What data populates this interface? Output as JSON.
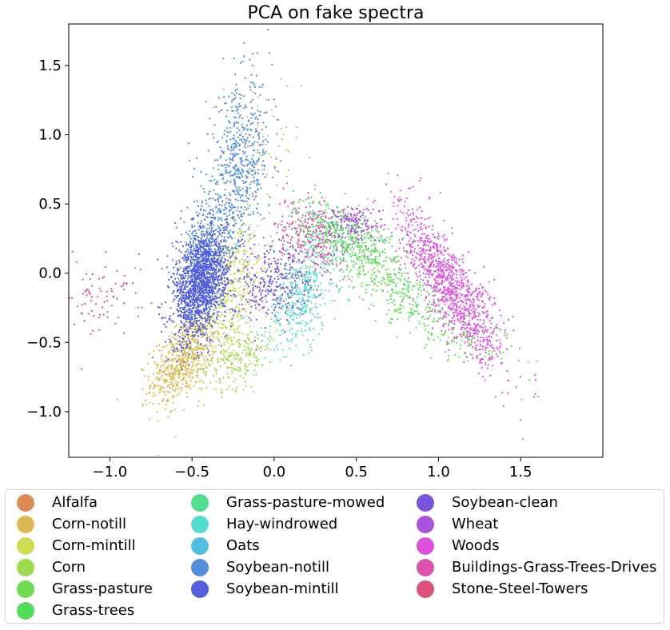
{
  "chart_data": {
    "type": "scatter",
    "title": "PCA on fake spectra",
    "xlabel": "",
    "ylabel": "",
    "xlim": [
      -1.25,
      2.0
    ],
    "ylim": [
      -1.33,
      1.8
    ],
    "xticks": [
      -1.0,
      -0.5,
      0.0,
      0.5,
      1.0,
      1.5
    ],
    "xtick_labels": [
      "−1.0",
      "−0.5",
      "0.0",
      "0.5",
      "1.0",
      "1.5"
    ],
    "yticks": [
      -1.0,
      -0.5,
      0.0,
      0.5,
      1.0,
      1.5
    ],
    "ytick_labels": [
      "−1.0",
      "−0.5",
      "0.0",
      "0.5",
      "1.0",
      "1.5"
    ],
    "grid": false,
    "legend_placement": "below-plot",
    "series": [
      {
        "name": "Alfalfa",
        "color": "#db8b53",
        "clusters": []
      },
      {
        "name": "Corn-notill",
        "color": "#dbbb53",
        "clusters": [
          {
            "cx": -0.55,
            "cy": -0.62,
            "sx": 0.1,
            "sy": 0.16,
            "rho": 0.55,
            "n": 650
          },
          {
            "cx": -0.08,
            "cy": 0.8,
            "sx": 0.12,
            "sy": 0.35,
            "rho": 0.0,
            "n": 70
          }
        ]
      },
      {
        "name": "Corn-mintill",
        "color": "#cedb53",
        "clusters": [
          {
            "cx": -0.28,
            "cy": -0.2,
            "sx": 0.1,
            "sy": 0.25,
            "rho": 0.3,
            "n": 320
          },
          {
            "cx": -0.2,
            "cy": 0.15,
            "sx": 0.08,
            "sy": 0.12,
            "rho": 0.0,
            "n": 80
          }
        ]
      },
      {
        "name": "Corn",
        "color": "#9edb53",
        "clusters": [
          {
            "cx": -0.22,
            "cy": -0.6,
            "sx": 0.12,
            "sy": 0.12,
            "rho": 0.4,
            "n": 220
          }
        ]
      },
      {
        "name": "Grass-pasture",
        "color": "#6edb53",
        "clusters": [
          {
            "cx": 1.05,
            "cy": -0.42,
            "sx": 0.22,
            "sy": 0.14,
            "rho": -0.7,
            "n": 140
          },
          {
            "cx": 0.62,
            "cy": 0.0,
            "sx": 0.14,
            "sy": 0.14,
            "rho": -0.6,
            "n": 150
          }
        ]
      },
      {
        "name": "Grass-trees",
        "color": "#53db5e",
        "clusters": [
          {
            "cx": 0.42,
            "cy": 0.28,
            "sx": 0.15,
            "sy": 0.12,
            "rho": -0.5,
            "n": 430
          },
          {
            "cx": 0.8,
            "cy": -0.15,
            "sx": 0.15,
            "sy": 0.12,
            "rho": -0.6,
            "n": 130
          }
        ]
      },
      {
        "name": "Grass-pasture-mowed",
        "color": "#53db8e",
        "clusters": []
      },
      {
        "name": "Hay-windrowed",
        "color": "#53dbcd",
        "clusters": [
          {
            "cx": 0.17,
            "cy": -0.15,
            "sx": 0.11,
            "sy": 0.2,
            "rho": 0.4,
            "n": 430
          }
        ]
      },
      {
        "name": "Oats",
        "color": "#53bedb",
        "clusters": []
      },
      {
        "name": "Soybean-notill",
        "color": "#538edb",
        "clusters": [
          {
            "cx": -0.22,
            "cy": 0.72,
            "sx": 0.1,
            "sy": 0.32,
            "rho": 0.3,
            "n": 650
          },
          {
            "cx": -0.42,
            "cy": 0.15,
            "sx": 0.08,
            "sy": 0.18,
            "rho": 0.0,
            "n": 320
          }
        ]
      },
      {
        "name": "Soybean-mintill",
        "color": "#535edb",
        "clusters": [
          {
            "cx": -0.45,
            "cy": -0.08,
            "sx": 0.08,
            "sy": 0.2,
            "rho": 0.35,
            "n": 1500
          }
        ]
      },
      {
        "name": "Soybean-clean",
        "color": "#7a53db",
        "clusters": [
          {
            "cx": -0.02,
            "cy": -0.05,
            "sx": 0.13,
            "sy": 0.14,
            "rho": 0.2,
            "n": 330
          }
        ]
      },
      {
        "name": "Wheat",
        "color": "#a953db",
        "clusters": [
          {
            "cx": 0.48,
            "cy": 0.36,
            "sx": 0.09,
            "sy": 0.07,
            "rho": 0.0,
            "n": 160
          }
        ]
      },
      {
        "name": "Woods",
        "color": "#db53db",
        "clusters": [
          {
            "cx": 1.08,
            "cy": -0.12,
            "sx": 0.16,
            "sy": 0.28,
            "rho": -0.82,
            "n": 1100
          }
        ]
      },
      {
        "name": "Buildings-Grass-Trees-Drives",
        "color": "#db53ab",
        "clusters": [
          {
            "cx": 0.22,
            "cy": 0.28,
            "sx": 0.1,
            "sy": 0.14,
            "rho": -0.3,
            "n": 250
          }
        ]
      },
      {
        "name": "Stone-Steel-Towers",
        "color": "#db537a",
        "clusters": [
          {
            "cx": -1.05,
            "cy": -0.15,
            "sx": 0.13,
            "sy": 0.16,
            "rho": 0.2,
            "n": 90
          }
        ]
      }
    ]
  }
}
